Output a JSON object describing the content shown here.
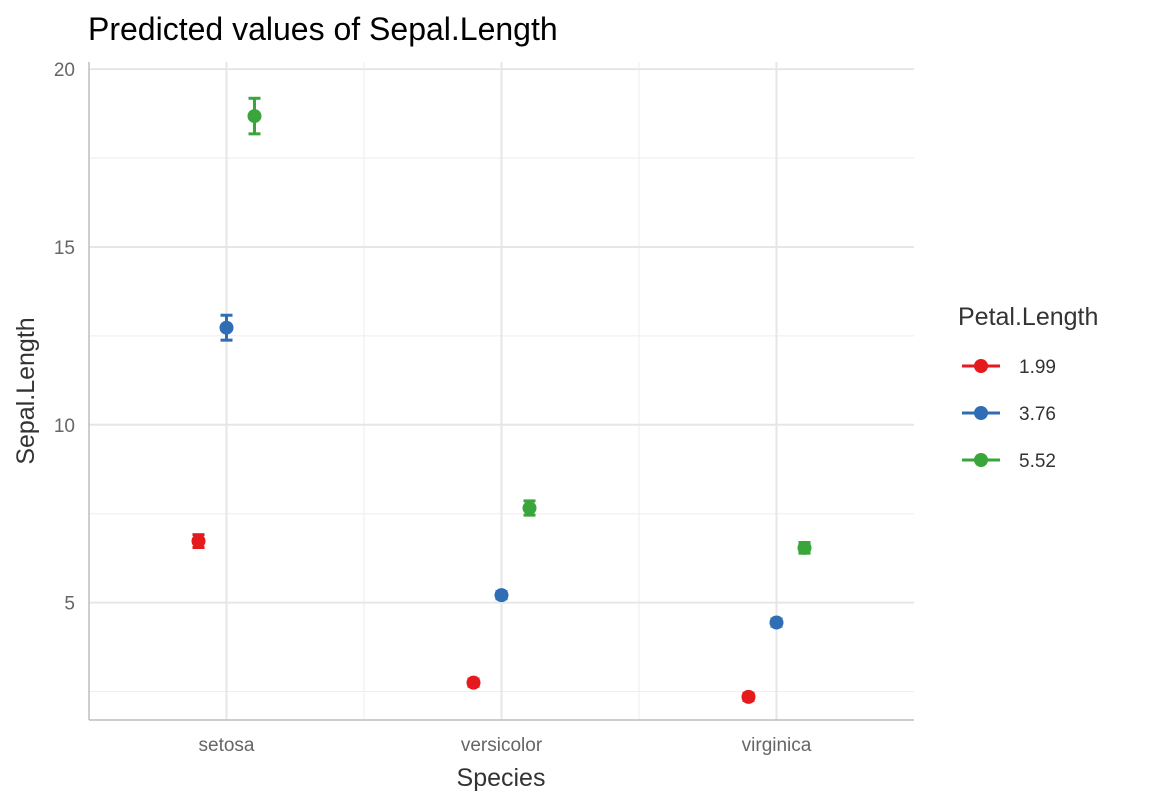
{
  "chart_data": {
    "type": "scatter",
    "title": "Predicted values of Sepal.Length",
    "xlabel": "Species",
    "ylabel": "Sepal.Length",
    "categories": [
      "setosa",
      "versicolor",
      "virginica"
    ],
    "ylim": [
      1.7,
      20.2
    ],
    "yticks": [
      5,
      10,
      15,
      20
    ],
    "yticks_minor": [
      2.5,
      7.5,
      12.5,
      17.5
    ],
    "grid": true,
    "legend": {
      "title": "Petal.Length",
      "position": "right"
    },
    "series": [
      {
        "name": "1.99",
        "color": "#e41a1c",
        "values": [
          6.73,
          2.75,
          2.35
        ],
        "lower": [
          6.55,
          2.65,
          2.25
        ],
        "upper": [
          6.91,
          2.85,
          2.45
        ]
      },
      {
        "name": "3.76",
        "color": "#2f6eb5",
        "values": [
          12.73,
          5.21,
          4.44
        ],
        "lower": [
          12.38,
          5.11,
          4.34
        ],
        "upper": [
          13.08,
          5.31,
          4.54
        ]
      },
      {
        "name": "5.52",
        "color": "#3aa53a",
        "values": [
          18.68,
          7.66,
          6.54
        ],
        "lower": [
          18.18,
          7.46,
          6.39
        ],
        "upper": [
          19.18,
          7.86,
          6.69
        ]
      }
    ]
  }
}
